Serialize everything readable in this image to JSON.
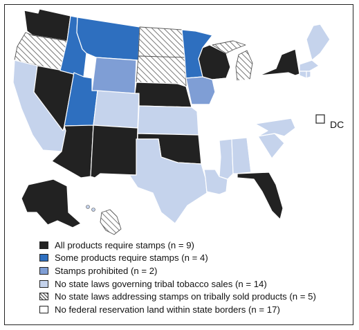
{
  "colors": {
    "cat_all": "#222222",
    "cat_some": "#2e6fbf",
    "cat_prohibited": "#7f9ed5",
    "cat_no_laws": "#c5d3ec",
    "cat_no_stamps_laws": "hatch",
    "cat_no_land": "#ffffff"
  },
  "dc": {
    "label": "DC",
    "category": "no_land"
  },
  "legend": [
    {
      "key": "all",
      "label": "All products require stamps (n = 9)"
    },
    {
      "key": "some",
      "label": "Some products require stamps (n = 4)"
    },
    {
      "key": "prohibited",
      "label": "Stamps prohibited (n = 2)"
    },
    {
      "key": "no_laws",
      "label": "No state laws governing tribal tobacco sales (n = 14)"
    },
    {
      "key": "no_stamps_laws",
      "label": "No state laws addressing stamps on tribally sold products (n = 5)"
    },
    {
      "key": "no_land",
      "label": "No federal reservation land within state borders (n = 17)"
    }
  ]
}
